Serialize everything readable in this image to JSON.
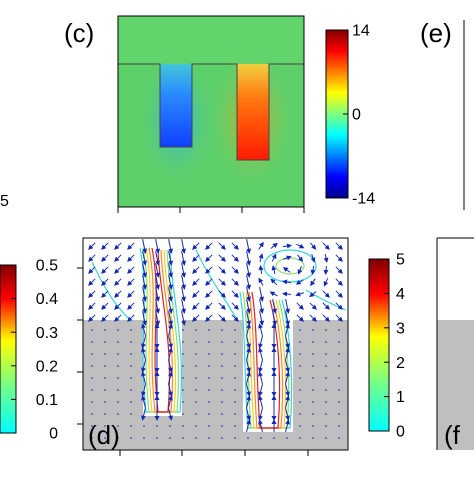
{
  "chart_data": [
    {
      "panel": "c",
      "type": "heatmap",
      "title": "",
      "xlabel": "",
      "ylabel": "",
      "colormap": "jet",
      "structure": "two vertical trenches below an upper band",
      "field": {
        "left_trench": -14,
        "right_trench": 14,
        "background": 0
      },
      "colorbar": {
        "min": -14,
        "max": 14,
        "ticks": [
          14,
          0,
          -14
        ]
      }
    },
    {
      "panel": "d",
      "type": "scatter",
      "title": "",
      "xlabel": "",
      "ylabel": "",
      "plot_kind": "vector field with contour lines over a gray region",
      "colorbar": {
        "min": 0,
        "max": 5,
        "ticks": [
          5,
          4,
          3,
          2,
          1,
          0
        ]
      }
    },
    {
      "panel": "left-partial",
      "type": "heatmap",
      "colorbar": {
        "min": 0,
        "max": 0.5,
        "ticks": [
          0.5,
          0.4,
          0.3,
          0.2,
          0.1,
          0
        ]
      }
    }
  ],
  "panel_labels": {
    "c": "(c)",
    "d": "(d)",
    "e": "(e)",
    "f": "(f"
  },
  "stray_tick": "5",
  "colors": {
    "arrow": "#1428b4",
    "substrate": "#bfbfbf",
    "background_field": "#5ed06a"
  }
}
